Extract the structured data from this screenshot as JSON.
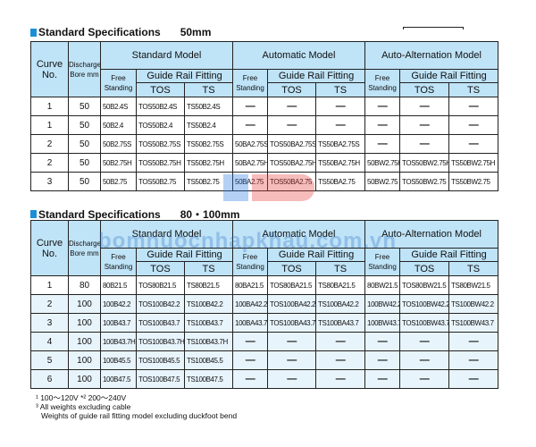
{
  "headers": {
    "curve": "Curve No.",
    "bore": "Discharge Bore mm",
    "standard": "Standard Model",
    "automatic": "Automatic Model",
    "alternation": "Auto-Alternation Model",
    "free": "Free Standing",
    "guide": "Guide Rail Fitting",
    "tos": "TOS",
    "ts": "TS"
  },
  "table1": {
    "title": "Standard Specifications",
    "size": "50mm",
    "rows": [
      [
        "1",
        "50",
        "50B2.4S",
        "TOS50B2.4S",
        "TS50B2.4S",
        "—",
        "—",
        "—",
        "—",
        "—",
        "—"
      ],
      [
        "1",
        "50",
        "50B2.4",
        "TOS50B2.4",
        "TS50B2.4",
        "—",
        "—",
        "—",
        "—",
        "—",
        "—"
      ],
      [
        "2",
        "50",
        "50B2.75S",
        "TOS50B2.75S",
        "TS50B2.75S",
        "50BA2.75S",
        "TOS50BA2.75S",
        "TS50BA2.75S",
        "—",
        "—",
        "—"
      ],
      [
        "2",
        "50",
        "50B2.75H",
        "TOS50B2.75H",
        "TS50B2.75H",
        "50BA2.75H",
        "TOS50BA2.75H",
        "TS50BA2.75H",
        "50BW2.75H",
        "TOS50BW2.75H",
        "TS50BW2.75H"
      ],
      [
        "3",
        "50",
        "50B2.75",
        "TOS50B2.75",
        "TS50B2.75",
        "50BA2.75",
        "TOS50BA2.75",
        "TS50BA2.75",
        "50BW2.75",
        "TOS50BW2.75",
        "TS50BW2.75"
      ]
    ]
  },
  "table2": {
    "title": "Standard Specifications",
    "size": "80・100mm",
    "rows": [
      [
        "1",
        "80",
        "80B21.5",
        "TOS80B21.5",
        "TS80B21.5",
        "80BA21.5",
        "TOS80BA21.5",
        "TS80BA21.5",
        "80BW21.5",
        "TOS80BW21.5",
        "TS80BW21.5"
      ],
      [
        "2",
        "100",
        "100B42.2",
        "TOS100B42.2",
        "TS100B42.2",
        "100BA42.2",
        "TOS100BA42.2",
        "TS100BA42.2",
        "100BW42.2",
        "TOS100BW42.2",
        "TS100BW42.2"
      ],
      [
        "3",
        "100",
        "100B43.7",
        "TOS100B43.7",
        "TS100B43.7",
        "100BA43.7",
        "TOS100BA43.7",
        "TS100BA43.7",
        "100BW43.7",
        "TOS100BW43.7",
        "TS100BW43.7"
      ],
      [
        "4",
        "100",
        "100B43.7H",
        "TOS100B43.7H",
        "TS100B43.7H",
        "—",
        "—",
        "—",
        "—",
        "—",
        "—"
      ],
      [
        "5",
        "100",
        "100B45.5",
        "TOS100B45.5",
        "TS100B45.5",
        "—",
        "—",
        "—",
        "—",
        "—",
        "—"
      ],
      [
        "6",
        "100",
        "100B47.5",
        "TOS100B47.5",
        "TS100B47.5",
        "—",
        "—",
        "—",
        "—",
        "—",
        "—"
      ]
    ]
  },
  "notes": [
    "¹ 100〜120V  *² 200〜240V",
    "³ All weights excluding cable",
    "Weights of guide rail fitting model excluding duckfoot bend"
  ],
  "watermark": "bomnuocnhapkhau.com.vn",
  "colors": {
    "header_bg": "#bfe3f7",
    "accent": "#1a8fd6",
    "alt_row": "#e8f4fc"
  }
}
